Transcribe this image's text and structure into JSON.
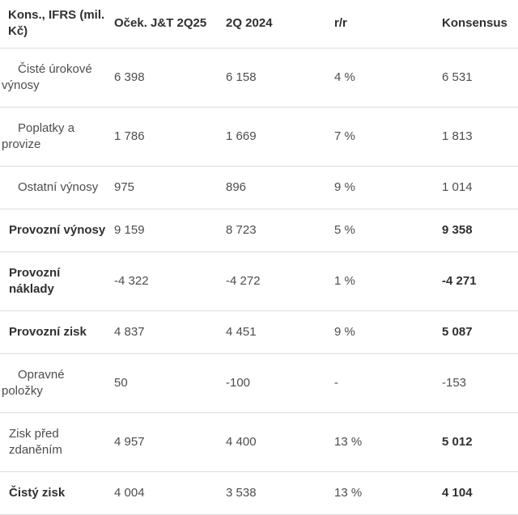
{
  "colors": {
    "text": "#4d4d4d",
    "text_strong": "#303030",
    "divider": "#dcdcdc",
    "bg": "#ffffff"
  },
  "table": {
    "columns": [
      {
        "label": "Kons., IFRS (mil. Kč)",
        "label_lines": [
          "Kons., IFRS (mil.",
          "Kč)"
        ]
      },
      {
        "label": "Oček. J&T 2Q25",
        "label_lines": [
          "Oček. J&T 2Q25"
        ]
      },
      {
        "label": "2Q 2024",
        "label_lines": [
          "2Q 2024"
        ]
      },
      {
        "label": "r/r",
        "label_lines": [
          "r/r"
        ]
      },
      {
        "label": "Konsensus",
        "label_lines": [
          "Konsensus"
        ]
      }
    ],
    "rows": [
      {
        "label": "Čisté úrokové výnosy",
        "label_lines": [
          "Čisté úrokové",
          "výnosy"
        ],
        "style": "sub",
        "ocek_jt": "6 398",
        "q2_2024": "6 158",
        "yoy": "4 %",
        "konsensus": "6 531",
        "konsensus_bold": false
      },
      {
        "label": "Poplatky a provize",
        "label_lines": [
          "Poplatky a",
          "provize"
        ],
        "style": "sub",
        "ocek_jt": "1 786",
        "q2_2024": "1 669",
        "yoy": "7 %",
        "konsensus": "1 813",
        "konsensus_bold": false
      },
      {
        "label": "Ostatní výnosy",
        "label_lines": [
          "Ostatní výnosy"
        ],
        "style": "sub",
        "ocek_jt": "975",
        "q2_2024": "896",
        "yoy": "9 %",
        "konsensus": "1 014",
        "konsensus_bold": false
      },
      {
        "label": "Provozní výnosy",
        "label_lines": [
          "Provozní výnosy"
        ],
        "style": "bold",
        "ocek_jt": "9 159",
        "q2_2024": "8 723",
        "yoy": "5 %",
        "konsensus": "9 358",
        "konsensus_bold": true
      },
      {
        "label": "Provozní náklady",
        "label_lines": [
          "Provozní",
          "náklady"
        ],
        "style": "bold",
        "ocek_jt": "-4 322",
        "q2_2024": "-4 272",
        "yoy": "1 %",
        "konsensus": "-4 271",
        "konsensus_bold": true
      },
      {
        "label": "Provozní zisk",
        "label_lines": [
          "Provozní zisk"
        ],
        "style": "bold",
        "ocek_jt": "4 837",
        "q2_2024": "4 451",
        "yoy": "9 %",
        "konsensus": "5 087",
        "konsensus_bold": true
      },
      {
        "label": "Opravné položky",
        "label_lines": [
          "Opravné",
          "položky"
        ],
        "style": "sub",
        "ocek_jt": "50",
        "q2_2024": "-100",
        "yoy": "-",
        "konsensus": "-153",
        "konsensus_bold": false
      },
      {
        "label": "Zisk před zdaněním",
        "label_lines": [
          "Zisk před",
          "zdaněním"
        ],
        "style": "plain",
        "ocek_jt": "4 957",
        "q2_2024": "4 400",
        "yoy": "13 %",
        "konsensus": "5 012",
        "konsensus_bold": true
      },
      {
        "label": "Čistý zisk",
        "label_lines": [
          "Čistý zisk"
        ],
        "style": "bold",
        "ocek_jt": "4 004",
        "q2_2024": "3 538",
        "yoy": "13 %",
        "konsensus": "4 104",
        "konsensus_bold": true
      }
    ]
  },
  "chart_data": {
    "type": "table",
    "title": "Kons., IFRS (mil. Kč)",
    "columns": [
      "Kons., IFRS (mil. Kč)",
      "Oček. J&T 2Q25",
      "2Q 2024",
      "r/r",
      "Konsensus"
    ],
    "rows": [
      [
        "Čisté úrokové výnosy",
        "6 398",
        "6 158",
        "4 %",
        "6 531"
      ],
      [
        "Poplatky a provize",
        "1 786",
        "1 669",
        "7 %",
        "1 813"
      ],
      [
        "Ostatní výnosy",
        "975",
        "896",
        "9 %",
        "1 014"
      ],
      [
        "Provozní výnosy",
        "9 159",
        "8 723",
        "5 %",
        "9 358"
      ],
      [
        "Provozní náklady",
        "-4 322",
        "-4 272",
        "1 %",
        "-4 271"
      ],
      [
        "Provozní zisk",
        "4 837",
        "4 451",
        "9 %",
        "5 087"
      ],
      [
        "Opravné položky",
        "50",
        "-100",
        "-",
        "-153"
      ],
      [
        "Zisk před zdaněním",
        "4 957",
        "4 400",
        "13 %",
        "5 012"
      ],
      [
        "Čistý zisk",
        "4 004",
        "3 538",
        "13 %",
        "4 104"
      ]
    ]
  }
}
